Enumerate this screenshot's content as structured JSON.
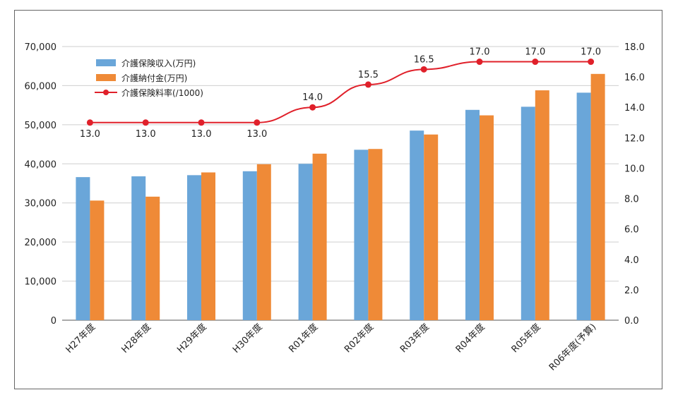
{
  "chart_data": {
    "type": "bar",
    "categories": [
      "H27年度",
      "H28年度",
      "H29年度",
      "H30年度",
      "R01年度",
      "R02年度",
      "R03年度",
      "R04年度",
      "R05年度",
      "R06年度(予算)"
    ],
    "series": [
      {
        "name": "介護保険収入(万円)",
        "type": "bar",
        "axis": "left",
        "color": "#6aa6d9",
        "values": [
          36600,
          36800,
          37100,
          38100,
          40000,
          43600,
          48500,
          53800,
          54600,
          58200
        ]
      },
      {
        "name": "介護納付金(万円)",
        "type": "bar",
        "axis": "left",
        "color": "#ef8a37",
        "values": [
          30600,
          31600,
          37800,
          39900,
          42600,
          43800,
          47500,
          52400,
          58800,
          63000
        ]
      },
      {
        "name": "介護保険料率(/1000)",
        "type": "line",
        "axis": "right",
        "color": "#e0202a",
        "values": [
          13.0,
          13.0,
          13.0,
          13.0,
          14.0,
          15.5,
          16.5,
          17.0,
          17.0,
          17.0
        ],
        "labels": [
          "13.0",
          "13.0",
          "13.0",
          "13.0",
          "14.0",
          "15.5",
          "16.5",
          "17.0",
          "17.0",
          "17.0"
        ]
      }
    ],
    "y_left": {
      "min": 0,
      "max": 70000,
      "ticks": [
        "0",
        "10,000",
        "20,000",
        "30,000",
        "40,000",
        "50,000",
        "60,000",
        "70,000"
      ]
    },
    "y_right": {
      "min": 0,
      "max": 18,
      "ticks": [
        "0.0",
        "2.0",
        "4.0",
        "6.0",
        "8.0",
        "10.0",
        "12.0",
        "14.0",
        "16.0",
        "18.0"
      ]
    },
    "legend_position": "top-left",
    "grid": true
  }
}
